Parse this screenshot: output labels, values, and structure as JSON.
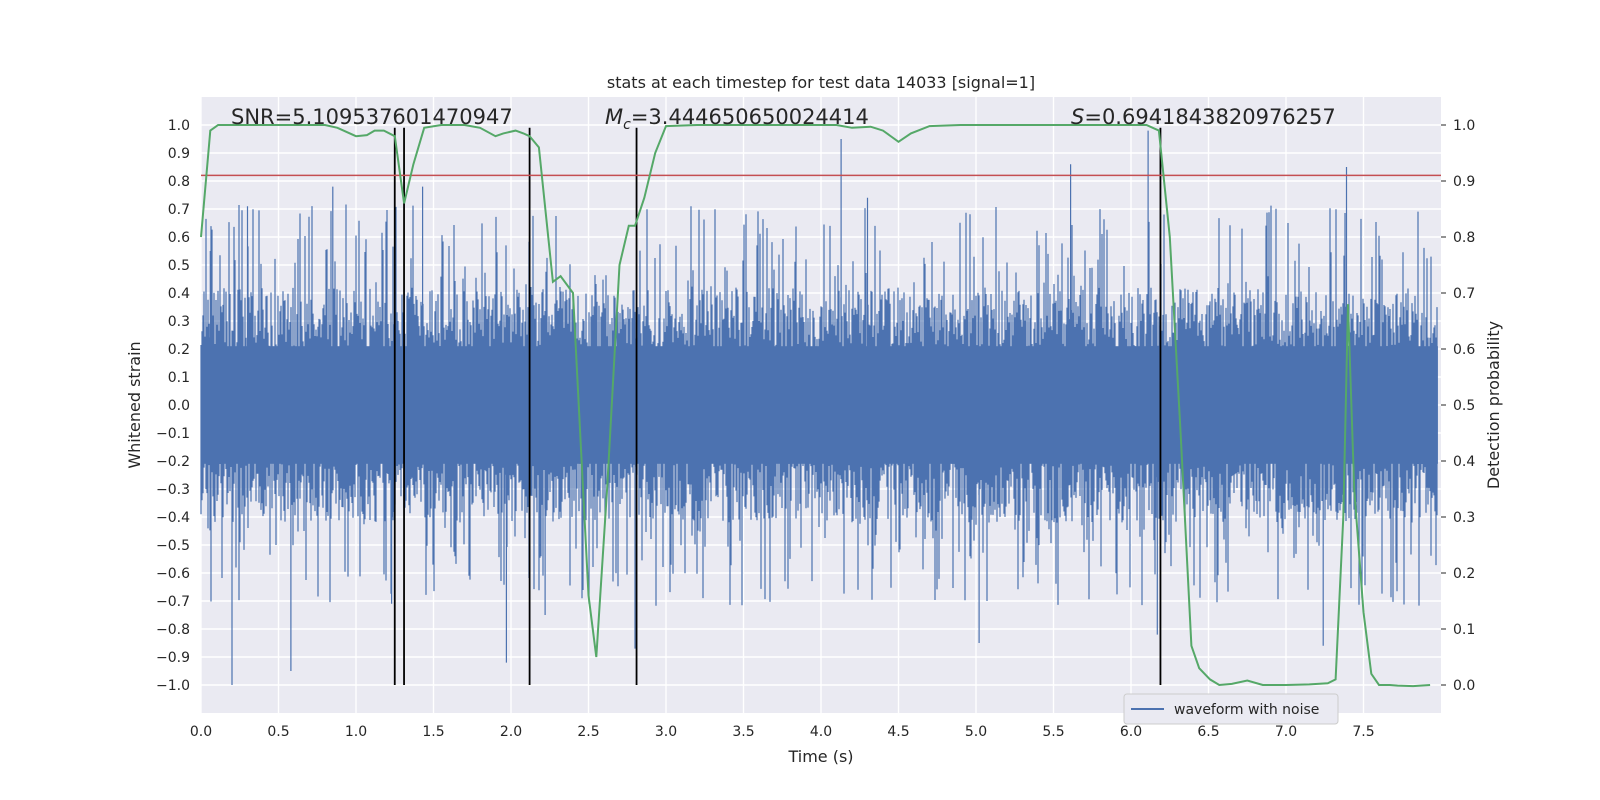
{
  "chart_data": {
    "type": "line",
    "title": "stats at each timestep for test data 14033 [signal=1]",
    "xlabel": "Time (s)",
    "ylabel_left": "Whitened strain",
    "ylabel_right": "Detection probability",
    "xlim": [
      0.0,
      8.0
    ],
    "ylim_left": [
      -1.1,
      1.1
    ],
    "ylim_right": [
      -0.05,
      1.05
    ],
    "x_ticks": [
      "0.0",
      "0.5",
      "1.0",
      "1.5",
      "2.0",
      "2.5",
      "3.0",
      "3.5",
      "4.0",
      "4.5",
      "5.0",
      "5.5",
      "6.0",
      "6.5",
      "7.0",
      "7.5"
    ],
    "y_left_ticks": [
      "1.0",
      "0.9",
      "0.8",
      "0.7",
      "0.6",
      "0.5",
      "0.4",
      "0.3",
      "0.2",
      "0.1",
      "0.0",
      "−0.1",
      "−0.2",
      "−0.3",
      "−0.4",
      "−0.5",
      "−0.6",
      "−0.7",
      "−0.8",
      "−0.9",
      "−1.0"
    ],
    "y_right_ticks": [
      "1.0",
      "0.9",
      "0.8",
      "0.7",
      "0.6",
      "0.5",
      "0.4",
      "0.3",
      "0.2",
      "0.1",
      "0.0"
    ],
    "grid": true,
    "legend_position": "lower-right",
    "annotations": {
      "snr": "SNR=5.109537601470947",
      "mc": "=3.444650650024414",
      "mc_symbol": "M",
      "mc_sub": "c",
      "s": "=0.6941843820976257",
      "s_symbol": "S"
    },
    "series": [
      {
        "name": "waveform with noise",
        "axis": "left",
        "color": "#4c72b0",
        "description_envelope": {
          "x": [
            0.0,
            7.98
          ],
          "y_typical_max": 0.42,
          "y_typical_min": -0.42
        },
        "peaks": [
          {
            "x": 0.06,
            "y": 0.55
          },
          {
            "x": 0.2,
            "y": -1.0
          },
          {
            "x": 0.3,
            "y": 0.71
          },
          {
            "x": 0.58,
            "y": -0.95
          },
          {
            "x": 0.85,
            "y": 0.78
          },
          {
            "x": 1.23,
            "y": -0.71
          },
          {
            "x": 1.43,
            "y": 0.78
          },
          {
            "x": 1.97,
            "y": -0.92
          },
          {
            "x": 2.22,
            "y": -0.75
          },
          {
            "x": 2.8,
            "y": -0.87
          },
          {
            "x": 4.13,
            "y": 0.95
          },
          {
            "x": 4.3,
            "y": 0.74
          },
          {
            "x": 5.02,
            "y": -0.85
          },
          {
            "x": 5.61,
            "y": 0.86
          },
          {
            "x": 6.11,
            "y": 0.98
          },
          {
            "x": 6.17,
            "y": -0.82
          },
          {
            "x": 7.24,
            "y": -0.86
          },
          {
            "x": 7.39,
            "y": 0.85
          }
        ]
      },
      {
        "name": "",
        "axis": "right",
        "color": "#55a868",
        "x": [
          0.0,
          0.06,
          0.11,
          0.2,
          0.3,
          0.4,
          0.5,
          0.6,
          0.7,
          0.8,
          0.88,
          1.0,
          1.07,
          1.12,
          1.18,
          1.25,
          1.31,
          1.37,
          1.44,
          1.55,
          1.7,
          1.8,
          1.9,
          1.95,
          2.03,
          2.08,
          2.12,
          2.18,
          2.27,
          2.32,
          2.4,
          2.5,
          2.55,
          2.62,
          2.7,
          2.76,
          2.8,
          2.86,
          2.93,
          3.0,
          3.2,
          3.5,
          3.8,
          4.0,
          4.1,
          4.2,
          4.32,
          4.4,
          4.5,
          4.58,
          4.7,
          4.9,
          5.2,
          5.5,
          5.8,
          6.0,
          6.1,
          6.18,
          6.25,
          6.32,
          6.39,
          6.44,
          6.51,
          6.57,
          6.65,
          6.75,
          6.85,
          7.0,
          7.15,
          7.27,
          7.32,
          7.37,
          7.4,
          7.44,
          7.5,
          7.55,
          7.6,
          7.67,
          7.72,
          7.82,
          7.93
        ],
        "y": [
          0.8,
          0.99,
          1.0,
          1.0,
          1.0,
          1.0,
          1.0,
          1.0,
          1.0,
          1.0,
          0.995,
          0.98,
          0.982,
          0.99,
          0.99,
          0.98,
          0.86,
          0.93,
          0.995,
          1.0,
          1.0,
          0.995,
          0.98,
          0.985,
          0.99,
          0.985,
          0.98,
          0.96,
          0.72,
          0.73,
          0.7,
          0.16,
          0.05,
          0.35,
          0.75,
          0.82,
          0.82,
          0.87,
          0.95,
          0.998,
          1.0,
          1.0,
          1.0,
          1.0,
          1.0,
          0.995,
          0.997,
          0.99,
          0.97,
          0.985,
          0.998,
          1.0,
          1.0,
          1.0,
          1.0,
          1.0,
          1.0,
          0.99,
          0.8,
          0.45,
          0.07,
          0.03,
          0.01,
          0.0,
          0.002,
          0.008,
          0.0,
          0.0,
          0.001,
          0.003,
          0.01,
          0.3,
          0.68,
          0.35,
          0.13,
          0.02,
          0.0,
          0.0,
          -0.001,
          -0.002,
          0.0
        ]
      }
    ],
    "threshold_line": {
      "axis": "right",
      "value": 0.91,
      "color": "#c44e52"
    },
    "vertical_lines": {
      "x": [
        1.25,
        1.31,
        2.12,
        2.81,
        6.19
      ],
      "color": "#000000",
      "y_top": 0.99,
      "y_bottom": -1.0
    },
    "colors": {
      "plot_background": "#eaeaf2",
      "grid": "#ffffff",
      "strain": "#4c72b0",
      "probability": "#55a868",
      "threshold": "#c44e52"
    }
  }
}
